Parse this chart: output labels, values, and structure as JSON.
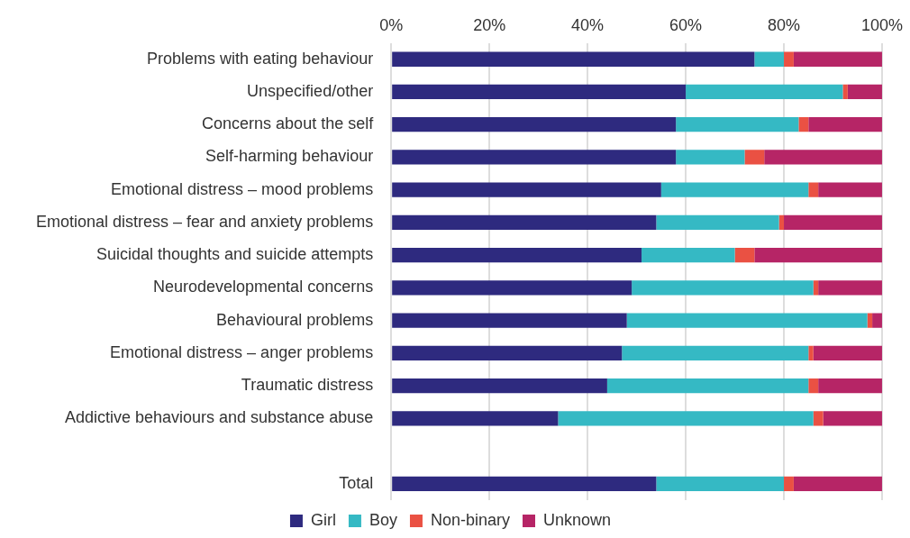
{
  "chart_data": {
    "type": "bar",
    "orientation": "horizontal",
    "stacked": true,
    "categories": [
      "Problems with eating behaviour",
      "Unspecified/other",
      "Concerns about the self",
      "Self-harming behaviour",
      "Emotional distress – mood problems",
      "Emotional distress – fear and anxiety problems",
      "Suicidal thoughts and suicide attempts",
      "Neurodevelopmental concerns",
      "Behavioural problems",
      "Emotional distress – anger problems",
      "Traumatic distress",
      "Addictive behaviours and substance abuse",
      null,
      "Total"
    ],
    "series": [
      {
        "name": "Girl",
        "color": "#2e2a7f",
        "values": [
          74,
          60,
          58,
          58,
          55,
          54,
          51,
          49,
          48,
          47,
          44,
          34,
          null,
          54
        ]
      },
      {
        "name": "Boy",
        "color": "#35b9c4",
        "values": [
          6,
          32,
          25,
          14,
          30,
          25,
          19,
          37,
          49,
          38,
          41,
          52,
          null,
          26
        ]
      },
      {
        "name": "Non-binary",
        "color": "#ea5143",
        "values": [
          2,
          1,
          2,
          4,
          2,
          1,
          4,
          1,
          1,
          1,
          2,
          2,
          null,
          2
        ]
      },
      {
        "name": "Unknown",
        "color": "#b62566",
        "values": [
          18,
          7,
          15,
          24,
          13,
          20,
          26,
          13,
          2,
          14,
          13,
          12,
          null,
          18
        ]
      }
    ],
    "xlim": [
      0,
      100
    ],
    "xticks": [
      {
        "value": 0,
        "label": "0%"
      },
      {
        "value": 20,
        "label": "20%"
      },
      {
        "value": 40,
        "label": "40%"
      },
      {
        "value": 60,
        "label": "60%"
      },
      {
        "value": 80,
        "label": "80%"
      },
      {
        "value": 100,
        "label": "100%"
      }
    ],
    "grid": "x",
    "legend": "bottom"
  }
}
